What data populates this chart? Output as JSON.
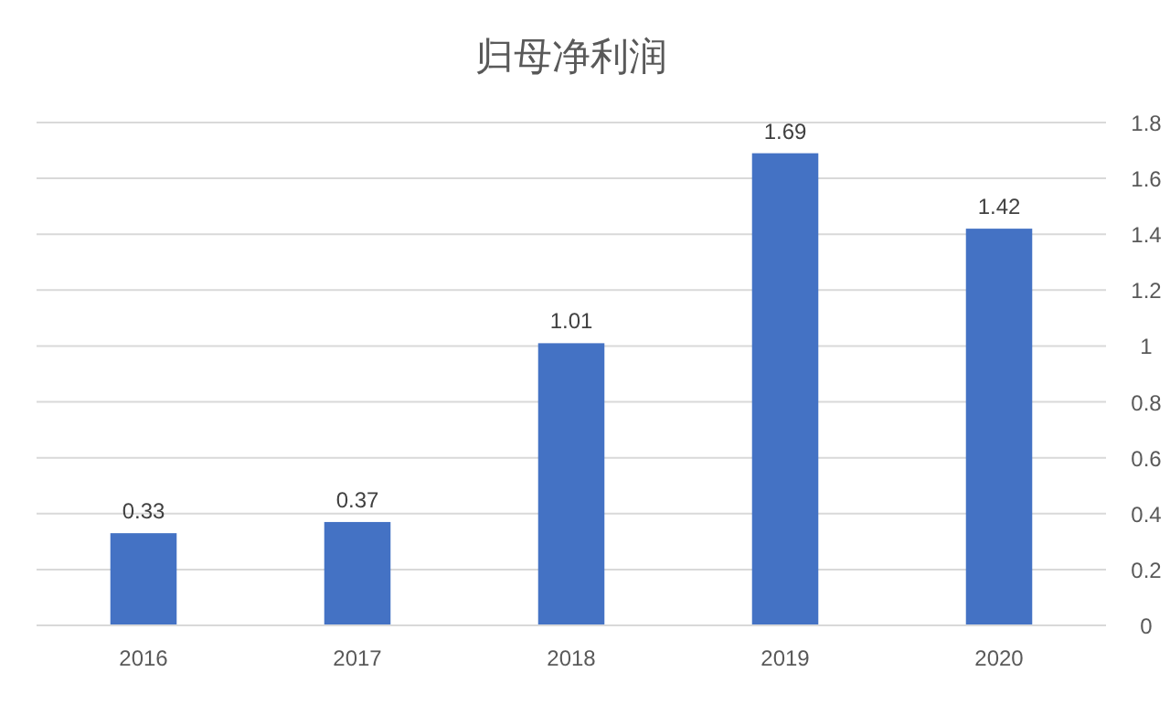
{
  "chart_data": {
    "type": "bar",
    "title": "归母净利润",
    "categories": [
      "2016",
      "2017",
      "2018",
      "2019",
      "2020"
    ],
    "values": [
      0.33,
      0.37,
      1.01,
      1.69,
      1.42
    ],
    "color": "#4472c4",
    "ylim": [
      0,
      1.8
    ],
    "yticks": [
      0,
      0.2,
      0.4,
      0.6,
      0.8,
      1,
      1.2,
      1.4,
      1.6,
      1.8
    ],
    "grid": "y",
    "data_labels": true
  }
}
